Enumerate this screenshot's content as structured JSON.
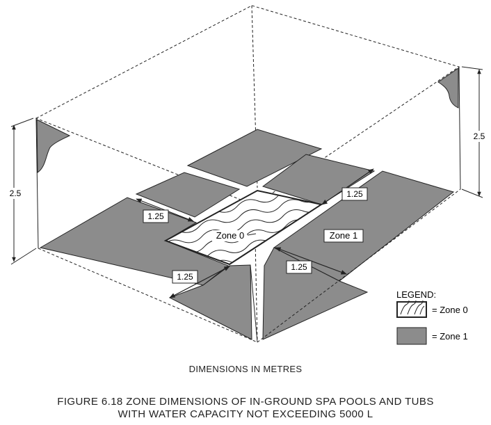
{
  "diagram": {
    "zone0_label": "Zone 0",
    "zone1_label": "Zone 1",
    "dimensions": {
      "left_height": "2.5",
      "right_height": "2.5",
      "left_upper": "1.25",
      "left_lower": "1.25",
      "right_upper": "1.25",
      "right_lower": "1.25"
    },
    "colors": {
      "zone1_fill": "#8c8c8c",
      "line": "#222222"
    }
  },
  "legend": {
    "title": "LEGEND:",
    "zone0_text": "= Zone 0",
    "zone1_text": "= Zone 1"
  },
  "notes": {
    "dimensions_note": "DIMENSIONS IN METRES"
  },
  "caption": {
    "line1": "FIGURE  6.18   ZONE DIMENSIONS OF IN-GROUND SPA POOLS AND TUBS",
    "line2": "WITH WATER CAPACITY NOT EXCEEDING 5000 L"
  }
}
